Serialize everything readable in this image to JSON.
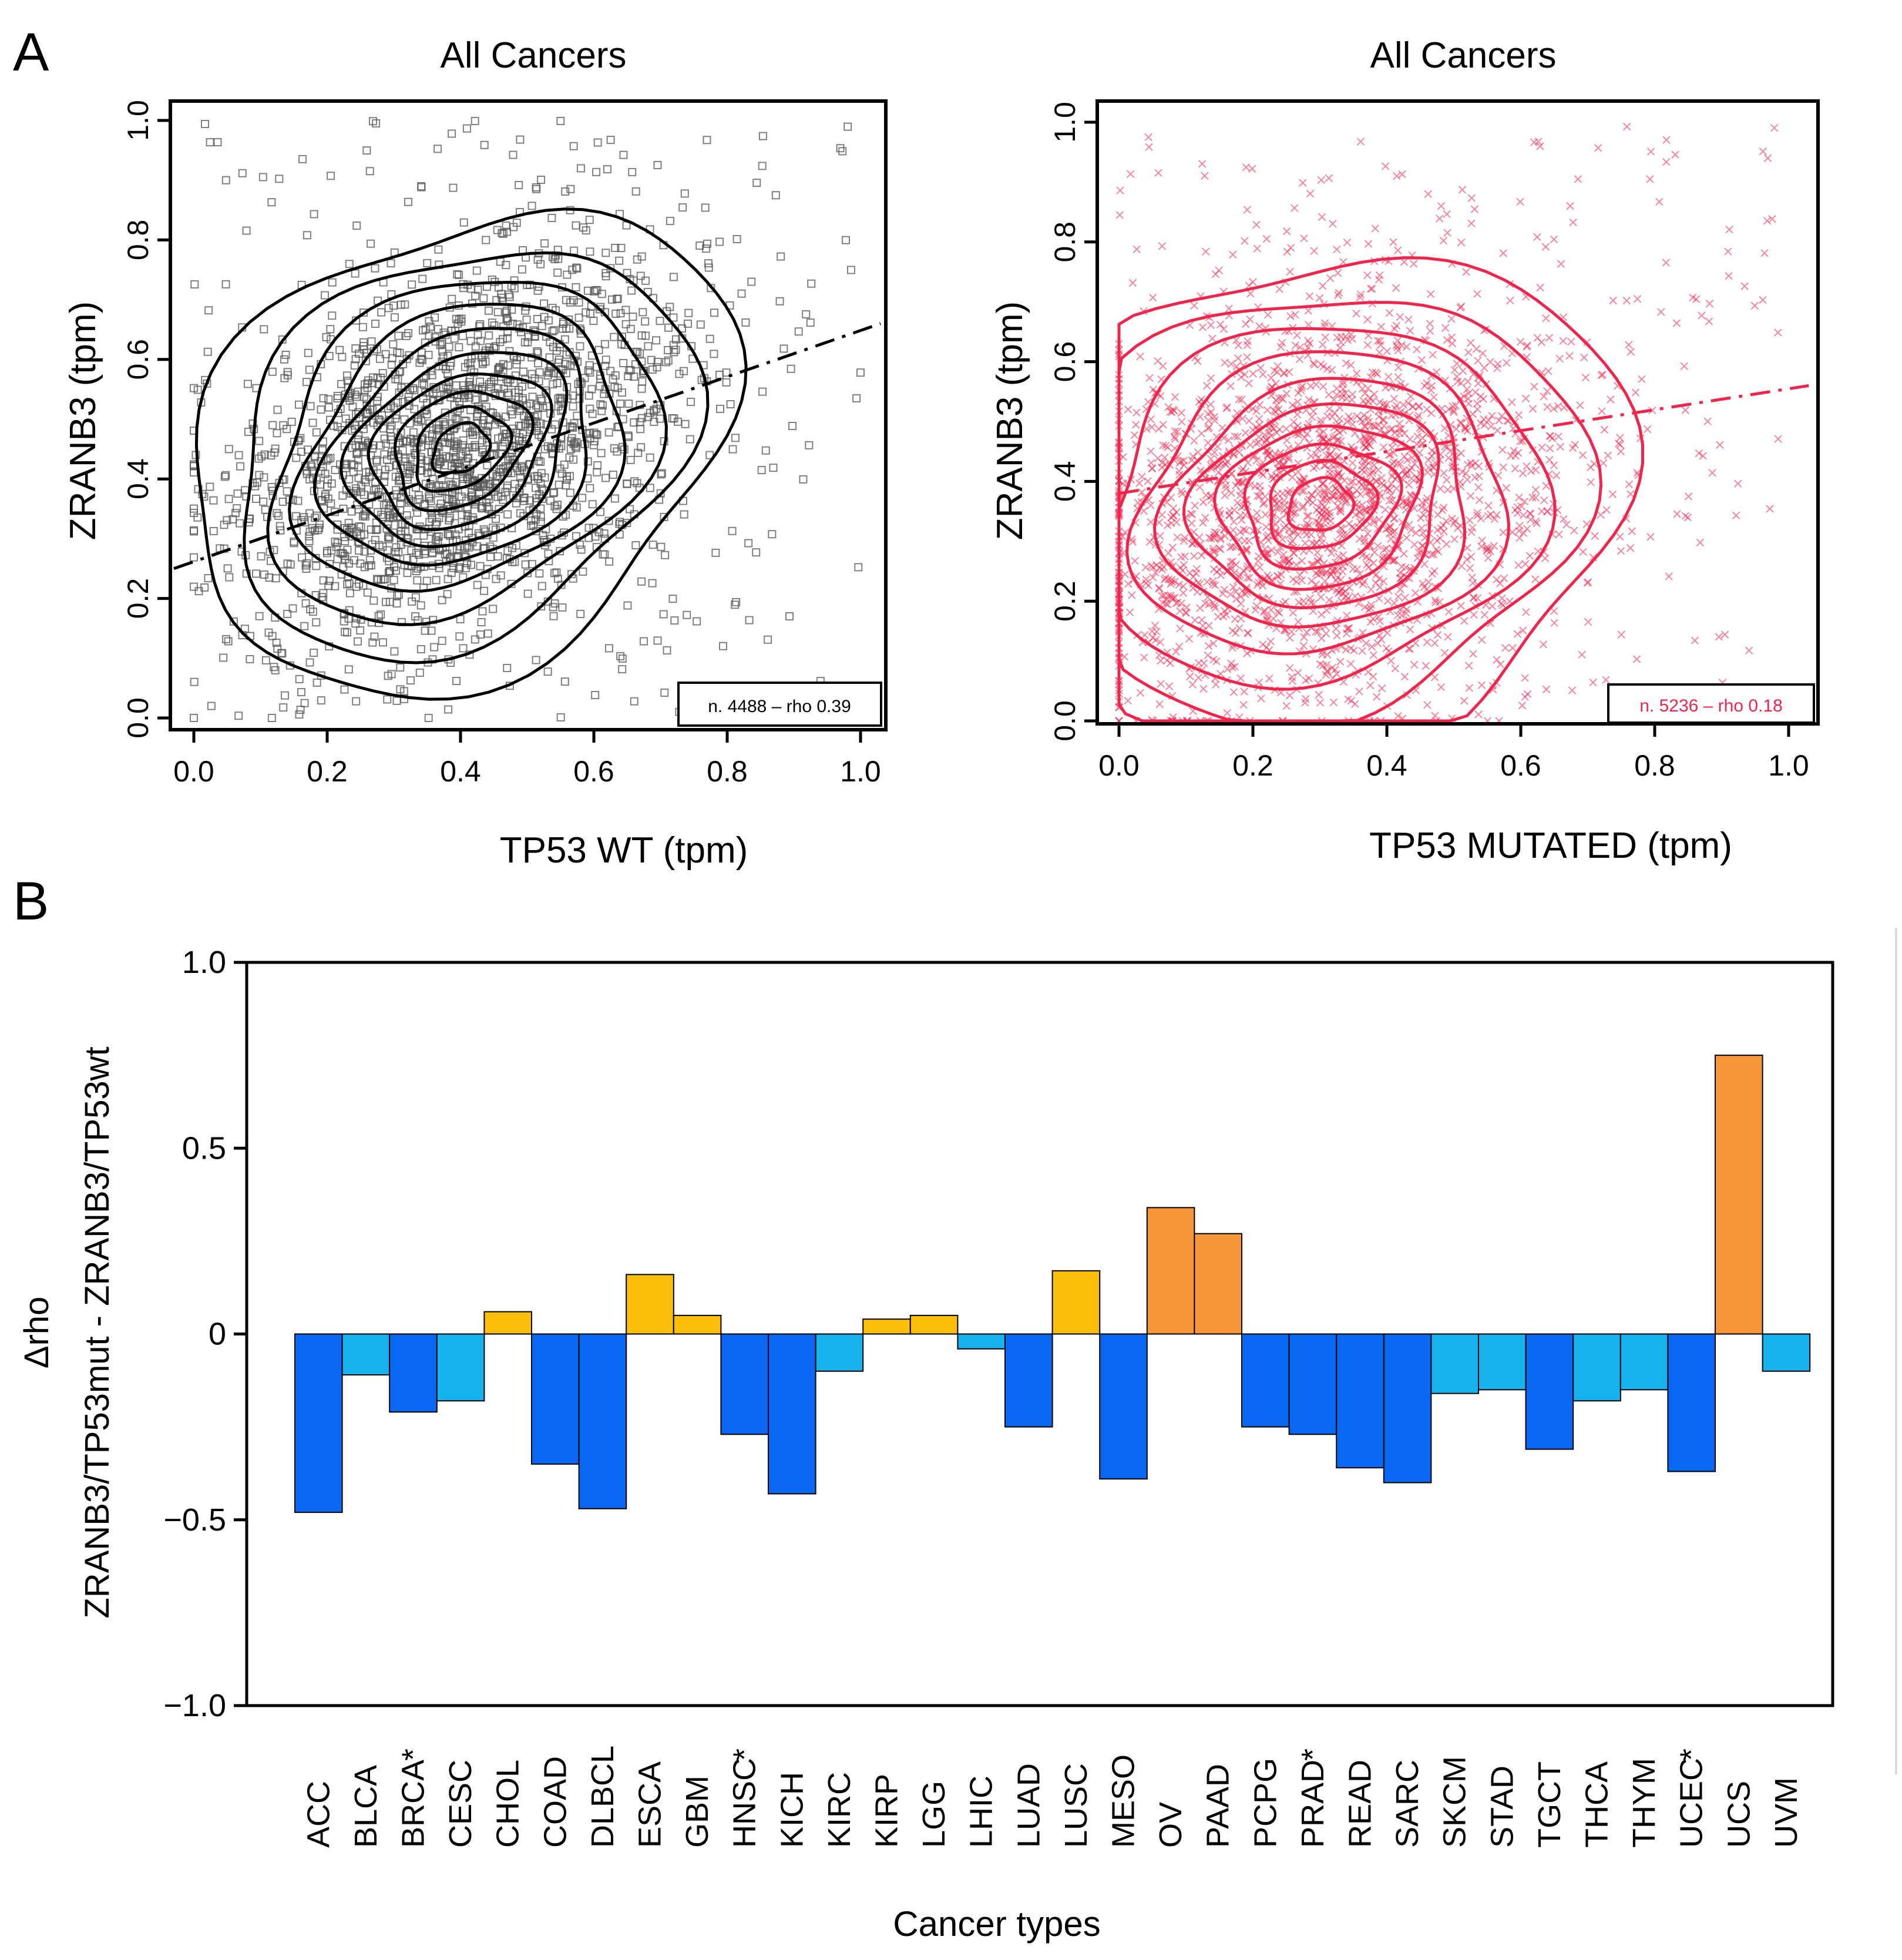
{
  "panel_labels": {
    "a": "A",
    "b": "B"
  },
  "chart_data": [
    {
      "type": "scatter",
      "title": "All Cancers",
      "xlabel": "TP53 WT (tpm)",
      "ylabel": "ZRANB3 (tpm)",
      "xlim": [
        0,
        1
      ],
      "ylim": [
        0,
        1
      ],
      "xticks": [
        "0.0",
        "0.2",
        "0.4",
        "0.6",
        "0.8",
        "1.0"
      ],
      "yticks": [
        "0.0",
        "0.2",
        "0.4",
        "0.6",
        "0.8",
        "1.0"
      ],
      "annotation": "n. 4488 – rho 0.39",
      "n": 4488,
      "rho": 0.39,
      "color": "#000000",
      "marker": "open-square",
      "fit_line": {
        "x": [
          -0.03,
          1.03
        ],
        "y": [
          0.25,
          0.66
        ]
      },
      "density_center": [
        0.4,
        0.45
      ],
      "density_spread": [
        0.17,
        0.16
      ],
      "density_corr": 0.39
    },
    {
      "type": "scatter",
      "title": "All Cancers",
      "xlabel": "TP53 MUTATED (tpm)",
      "ylabel": "ZRANB3 (tpm)",
      "xlim": [
        0,
        1
      ],
      "ylim": [
        0,
        1
      ],
      "xticks": [
        "0.0",
        "0.2",
        "0.4",
        "0.6",
        "0.8",
        "1.0"
      ],
      "yticks": [
        "0.0",
        "0.2",
        "0.4",
        "0.6",
        "0.8",
        "1.0"
      ],
      "annotation": "n. 5236 – rho 0.18",
      "n": 5236,
      "rho": 0.18,
      "color": "#F0254C",
      "marker": "cross",
      "fit_line": {
        "x": [
          0.0,
          1.03
        ],
        "y": [
          0.38,
          0.56
        ]
      },
      "density_center": [
        0.3,
        0.36
      ],
      "density_spread": [
        0.18,
        0.17
      ],
      "density_corr": 0.18
    },
    {
      "type": "bar",
      "title": "",
      "xlabel": "Cancer types",
      "ylabel_line1": "Δrho",
      "ylabel_line2": "ZRANB3/TP53mut - ZRANB3/TP53wt",
      "ylim": [
        -1.0,
        1.0
      ],
      "yticks": [
        "1.0",
        "0.5",
        "0",
        "−0.5",
        "−1.0"
      ],
      "ytick_values": [
        1.0,
        0.5,
        0,
        -0.5,
        -1.0
      ],
      "categories": [
        "ACC",
        "BLCA",
        "BRCA",
        "CESC",
        "CHOL",
        "COAD",
        "DLBCL",
        "ESCA",
        "GBM",
        "HNSC",
        "KICH",
        "KIRC",
        "KIRP",
        "LGG",
        "LHIC",
        "LUAD",
        "LUSC",
        "MESO",
        "OV",
        "PAAD",
        "PCPG",
        "PRAD",
        "READ",
        "SARC",
        "SKCM",
        "STAD",
        "TGCT",
        "THCA",
        "THYM",
        "UCEC",
        "UCS",
        "UVM"
      ],
      "values": [
        -0.48,
        -0.11,
        -0.21,
        -0.18,
        0.06,
        -0.35,
        -0.47,
        0.16,
        0.05,
        -0.27,
        -0.43,
        -0.1,
        0.04,
        0.05,
        -0.04,
        -0.25,
        0.17,
        -0.39,
        0.34,
        0.27,
        -0.25,
        -0.27,
        -0.36,
        -0.4,
        -0.16,
        -0.15,
        -0.31,
        -0.18,
        -0.15,
        -0.37,
        0.75,
        -0.1
      ],
      "significant": [
        "BRCA",
        "HNSC",
        "PRAD",
        "UCEC"
      ],
      "significance_mark": "*",
      "colors": {
        "strong_negative": "#0868F4",
        "weak_negative": "#17B3EF",
        "weak_positive": "#FBBF0A",
        "strong_positive": "#FA963A"
      }
    }
  ]
}
